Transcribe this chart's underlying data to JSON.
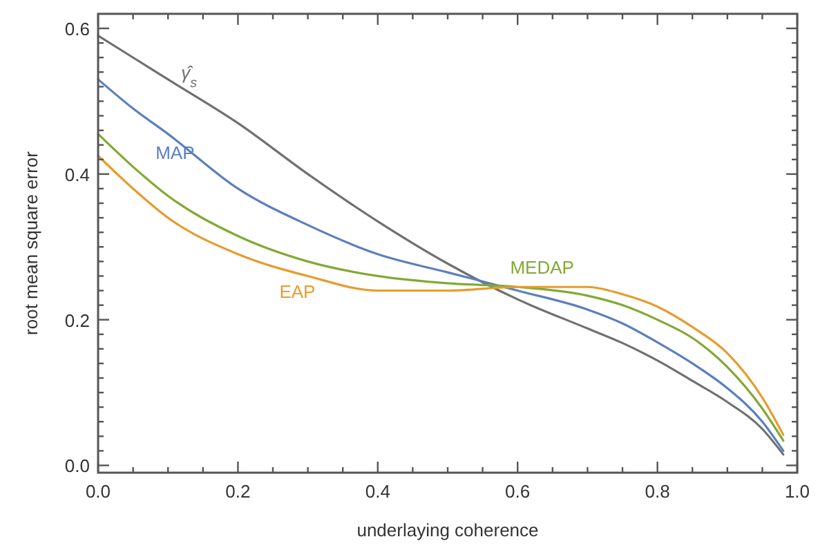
{
  "chart_data": {
    "type": "line",
    "xlabel": "underlaying coherence",
    "ylabel": "root mean square error",
    "x": [
      0,
      0.05,
      0.1,
      0.2,
      0.3,
      0.4,
      0.5,
      0.6,
      0.7,
      0.75,
      0.8,
      0.85,
      0.9,
      0.95,
      0.98
    ],
    "series": [
      {
        "name": "γ̂$_{s}$",
        "color": "#707070",
        "values": [
          0.59,
          0.56,
          0.53,
          0.47,
          0.4,
          0.335,
          0.277,
          0.228,
          0.188,
          0.168,
          0.144,
          0.116,
          0.087,
          0.05,
          0.015
        ]
      },
      {
        "name": "MAP",
        "color": "#5b7fbf",
        "values": [
          0.53,
          0.49,
          0.455,
          0.38,
          0.33,
          0.29,
          0.265,
          0.24,
          0.214,
          0.195,
          0.169,
          0.14,
          0.106,
          0.06,
          0.02
        ]
      },
      {
        "name": "MEDAP",
        "color": "#82a933",
        "values": [
          0.455,
          0.41,
          0.37,
          0.315,
          0.28,
          0.26,
          0.25,
          0.245,
          0.233,
          0.22,
          0.2,
          0.175,
          0.135,
          0.078,
          0.034
        ]
      },
      {
        "name": "EAP",
        "color": "#e89b2c",
        "values": [
          0.425,
          0.38,
          0.34,
          0.29,
          0.26,
          0.24,
          0.24,
          0.245,
          0.245,
          0.235,
          0.218,
          0.19,
          0.154,
          0.093,
          0.042
        ]
      }
    ],
    "xlim": [
      0,
      1
    ],
    "ylim": [
      -0.01,
      0.62
    ],
    "xticks": [
      {
        "value": 0,
        "label": "0.0"
      },
      {
        "value": 0.05,
        "label": null
      },
      {
        "value": 0.1,
        "label": null
      },
      {
        "value": 0.15,
        "label": null
      },
      {
        "value": 0.2,
        "label": "0.2"
      },
      {
        "value": 0.25,
        "label": null
      },
      {
        "value": 0.3,
        "label": null
      },
      {
        "value": 0.35,
        "label": null
      },
      {
        "value": 0.4,
        "label": "0.4"
      },
      {
        "value": 0.45,
        "label": null
      },
      {
        "value": 0.5,
        "label": null
      },
      {
        "value": 0.55,
        "label": null
      },
      {
        "value": 0.6,
        "label": "0.6"
      },
      {
        "value": 0.65,
        "label": null
      },
      {
        "value": 0.7,
        "label": null
      },
      {
        "value": 0.75,
        "label": null
      },
      {
        "value": 0.8,
        "label": "0.8"
      },
      {
        "value": 0.85,
        "label": null
      },
      {
        "value": 0.9,
        "label": null
      },
      {
        "value": 0.95,
        "label": null
      },
      {
        "value": 1,
        "label": "1.0"
      }
    ],
    "yticks": [
      {
        "value": 0,
        "label": "0.0"
      },
      {
        "value": 0.02,
        "label": null
      },
      {
        "value": 0.04,
        "label": null
      },
      {
        "value": 0.06,
        "label": null
      },
      {
        "value": 0.08,
        "label": null
      },
      {
        "value": 0.1,
        "label": null
      },
      {
        "value": 0.12,
        "label": null
      },
      {
        "value": 0.14,
        "label": null
      },
      {
        "value": 0.16,
        "label": null
      },
      {
        "value": 0.18,
        "label": null
      },
      {
        "value": 0.2,
        "label": "0.2"
      },
      {
        "value": 0.22,
        "label": null
      },
      {
        "value": 0.24,
        "label": null
      },
      {
        "value": 0.26,
        "label": null
      },
      {
        "value": 0.28,
        "label": null
      },
      {
        "value": 0.3,
        "label": null
      },
      {
        "value": 0.32,
        "label": null
      },
      {
        "value": 0.34,
        "label": null
      },
      {
        "value": 0.36,
        "label": null
      },
      {
        "value": 0.38,
        "label": null
      },
      {
        "value": 0.4,
        "label": "0.4"
      },
      {
        "value": 0.42,
        "label": null
      },
      {
        "value": 0.44,
        "label": null
      },
      {
        "value": 0.46,
        "label": null
      },
      {
        "value": 0.48,
        "label": null
      },
      {
        "value": 0.5,
        "label": null
      },
      {
        "value": 0.52,
        "label": null
      },
      {
        "value": 0.54,
        "label": null
      },
      {
        "value": 0.56,
        "label": null
      },
      {
        "value": 0.58,
        "label": null
      },
      {
        "value": 0.6,
        "label": "0.6"
      }
    ],
    "grid": false
  }
}
